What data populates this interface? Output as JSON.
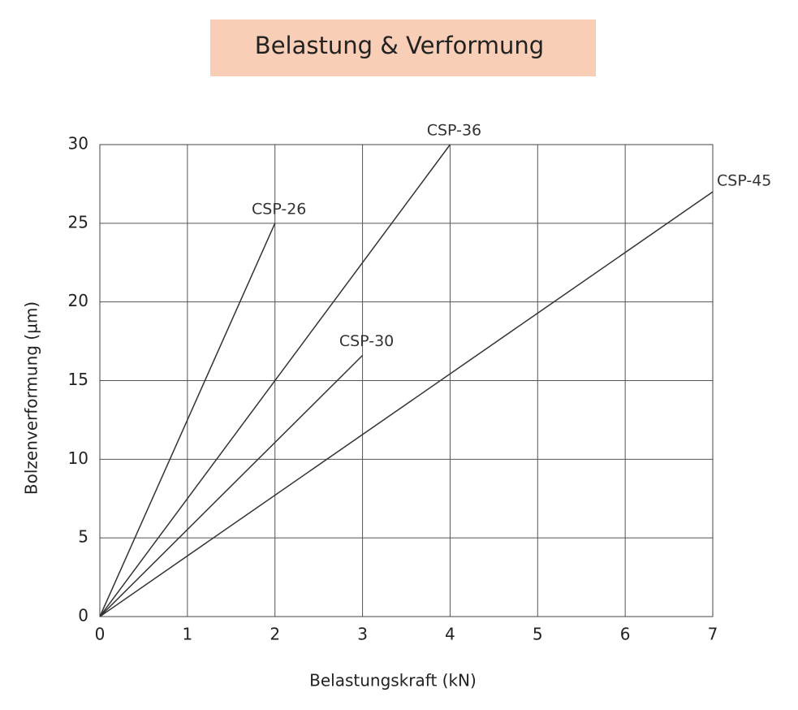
{
  "chart_data": {
    "type": "line",
    "title": "Belastung & Verformung",
    "x_label": "Belastungskraft (kN)",
    "y_label": "Bolzenverformung (µm)",
    "xlim": [
      0,
      7
    ],
    "ylim": [
      0,
      30
    ],
    "xticks": [
      0,
      1,
      2,
      3,
      4,
      5,
      6,
      7
    ],
    "yticks": [
      0,
      5,
      10,
      15,
      20,
      25,
      30
    ],
    "grid": true,
    "series": [
      {
        "name": "CSP-26",
        "color": "#333333",
        "x": [
          0,
          2
        ],
        "values": [
          0,
          25
        ]
      },
      {
        "name": "CSP-36",
        "color": "#333333",
        "x": [
          0,
          4
        ],
        "values": [
          0,
          30
        ]
      },
      {
        "name": "CSP-30",
        "color": "#333333",
        "x": [
          0,
          3
        ],
        "values": [
          0,
          16.6
        ]
      },
      {
        "name": "CSP-45",
        "color": "#333333",
        "x": [
          0,
          7
        ],
        "values": [
          0,
          27
        ]
      }
    ]
  }
}
